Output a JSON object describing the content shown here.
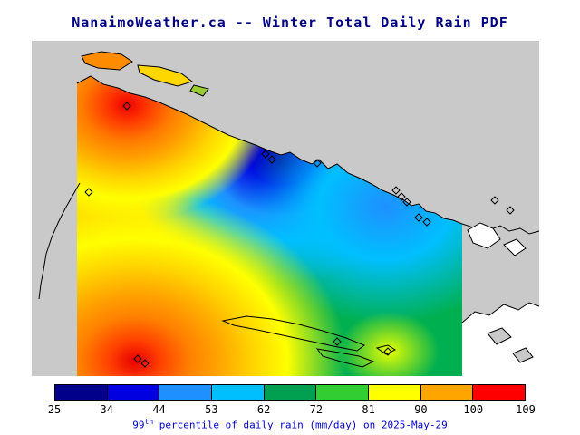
{
  "title": "NanaimoWeather.ca -- Winter Total Daily Rain PDF",
  "caption": {
    "prefix": "99",
    "sup": "th",
    "rest": " percentile of daily rain (mm/day) on 2025-May-29"
  },
  "colorbar": {
    "tick_labels": [
      "25",
      "34",
      "44",
      "53",
      "62",
      "72",
      "81",
      "90",
      "100",
      "109"
    ],
    "colors": [
      "#00008B",
      "#0000E0",
      "#1E90FF",
      "#00BFFF",
      "#00A050",
      "#32CD32",
      "#FFFF00",
      "#FFA500",
      "#FF0000"
    ]
  },
  "chart_data": {
    "type": "heatmap",
    "title": "NanaimoWeather.ca -- Winter Total Daily Rain PDF",
    "variable": "99th percentile of daily rain",
    "unit": "mm/day",
    "date": "2025-May-29",
    "scale_ticks": [
      25,
      34,
      44,
      53,
      62,
      72,
      81,
      90,
      100,
      109
    ],
    "scale_min": 25,
    "scale_max": 109,
    "legend_position": "bottom",
    "features": [
      {
        "name": "rain-maximum-northwest-coast",
        "approx_value": 109
      },
      {
        "name": "rain-maximum-southwest",
        "approx_value": 109
      },
      {
        "name": "rain-minimum-central-strait",
        "approx_value": 25
      },
      {
        "name": "rain-low-east-coast",
        "approx_value": 44
      }
    ],
    "station_markers": [
      [
        98,
        212
      ],
      [
        140,
        117
      ],
      [
        293,
        170
      ],
      [
        300,
        176
      ],
      [
        350,
        180
      ],
      [
        437,
        210
      ],
      [
        443,
        217
      ],
      [
        449,
        223
      ],
      [
        462,
        240
      ],
      [
        471,
        245
      ],
      [
        546,
        221
      ],
      [
        563,
        232
      ],
      [
        152,
        396
      ],
      [
        160,
        401
      ],
      [
        372,
        377
      ],
      [
        428,
        388
      ]
    ],
    "land_color": "#C9C9C9",
    "background_color": "#FFFFFF"
  }
}
